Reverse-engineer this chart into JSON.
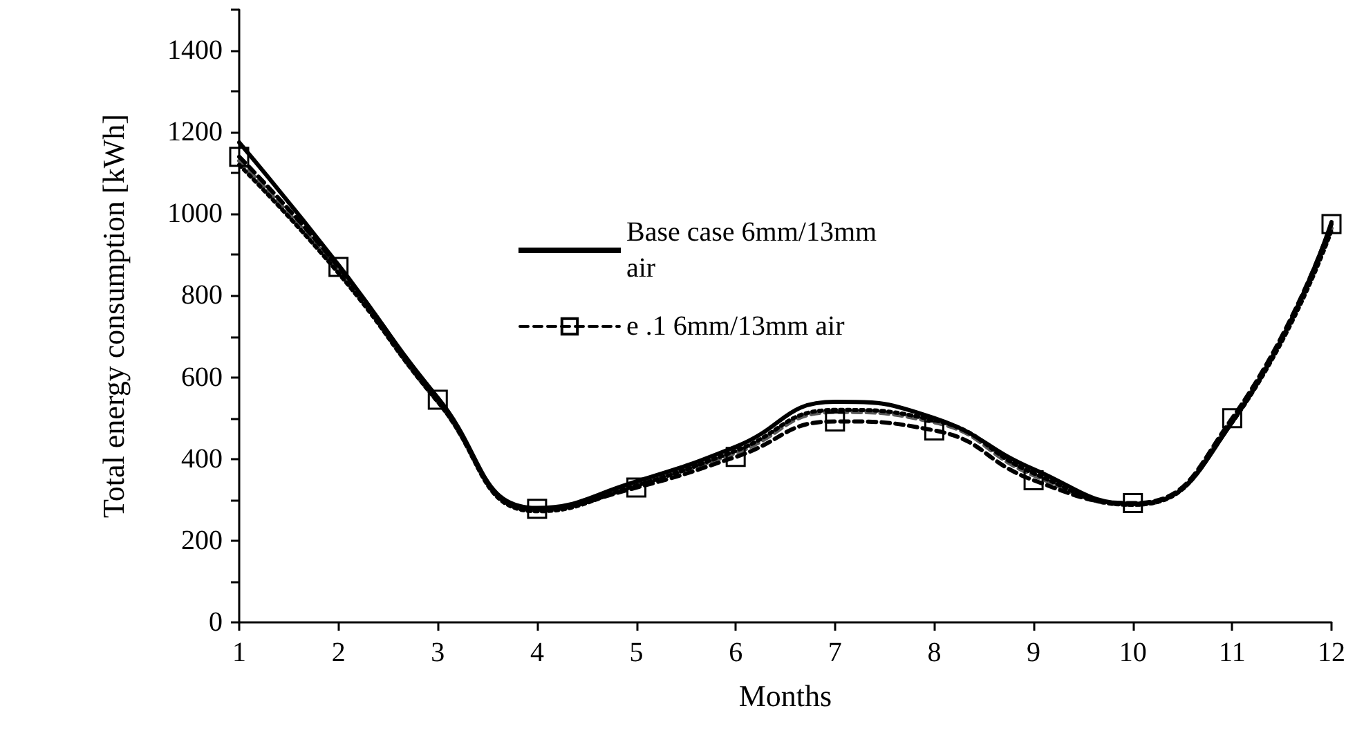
{
  "chart_data": {
    "type": "line",
    "xlabel": "Months",
    "ylabel": "Total energy consumption [kWh]",
    "x": [
      1,
      2,
      3,
      4,
      5,
      6,
      7,
      8,
      9,
      10,
      11,
      12
    ],
    "series": [
      {
        "name": "Base case 6mm/13mm air",
        "color": "#000000",
        "line_style": "solid",
        "marker": "none",
        "values": [
          1175,
          875,
          550,
          280,
          345,
          430,
          540,
          500,
          375,
          290,
          490,
          980
        ]
      },
      {
        "name": "e .1 6mm/13mm air",
        "color": "#000000",
        "line_style": "dashed",
        "marker": "square",
        "values": [
          1140,
          870,
          545,
          278,
          330,
          405,
          492,
          470,
          348,
          292,
          500,
          975
        ]
      },
      {
        "color": "#595959",
        "line_style": "dashed",
        "marker": "none",
        "values": [
          1130,
          860,
          540,
          275,
          340,
          415,
          515,
          490,
          360,
          288,
          495,
          965
        ]
      },
      {
        "color": "#000000",
        "line_style": "dotted",
        "marker": "none",
        "values": [
          1120,
          855,
          540,
          272,
          335,
          420,
          520,
          495,
          365,
          288,
          490,
          960
        ]
      }
    ],
    "xlim": [
      1,
      12
    ],
    "xticks": [
      1,
      2,
      3,
      4,
      5,
      6,
      7,
      8,
      9,
      10,
      11,
      12
    ],
    "ylim": [
      0,
      1500
    ],
    "yticks": [
      0,
      {
        "value": 100,
        "label": null
      },
      200,
      {
        "value": 300,
        "label": null
      },
      400,
      {
        "value": 500,
        "label": null
      },
      600,
      {
        "value": 700,
        "label": null
      },
      800,
      {
        "value": 900,
        "label": null
      },
      1000,
      {
        "value": 1100,
        "label": null
      },
      1200,
      {
        "value": 1300,
        "label": null
      },
      1400,
      {
        "value": 1500,
        "label": null
      }
    ],
    "grid": false,
    "legend": "top"
  }
}
